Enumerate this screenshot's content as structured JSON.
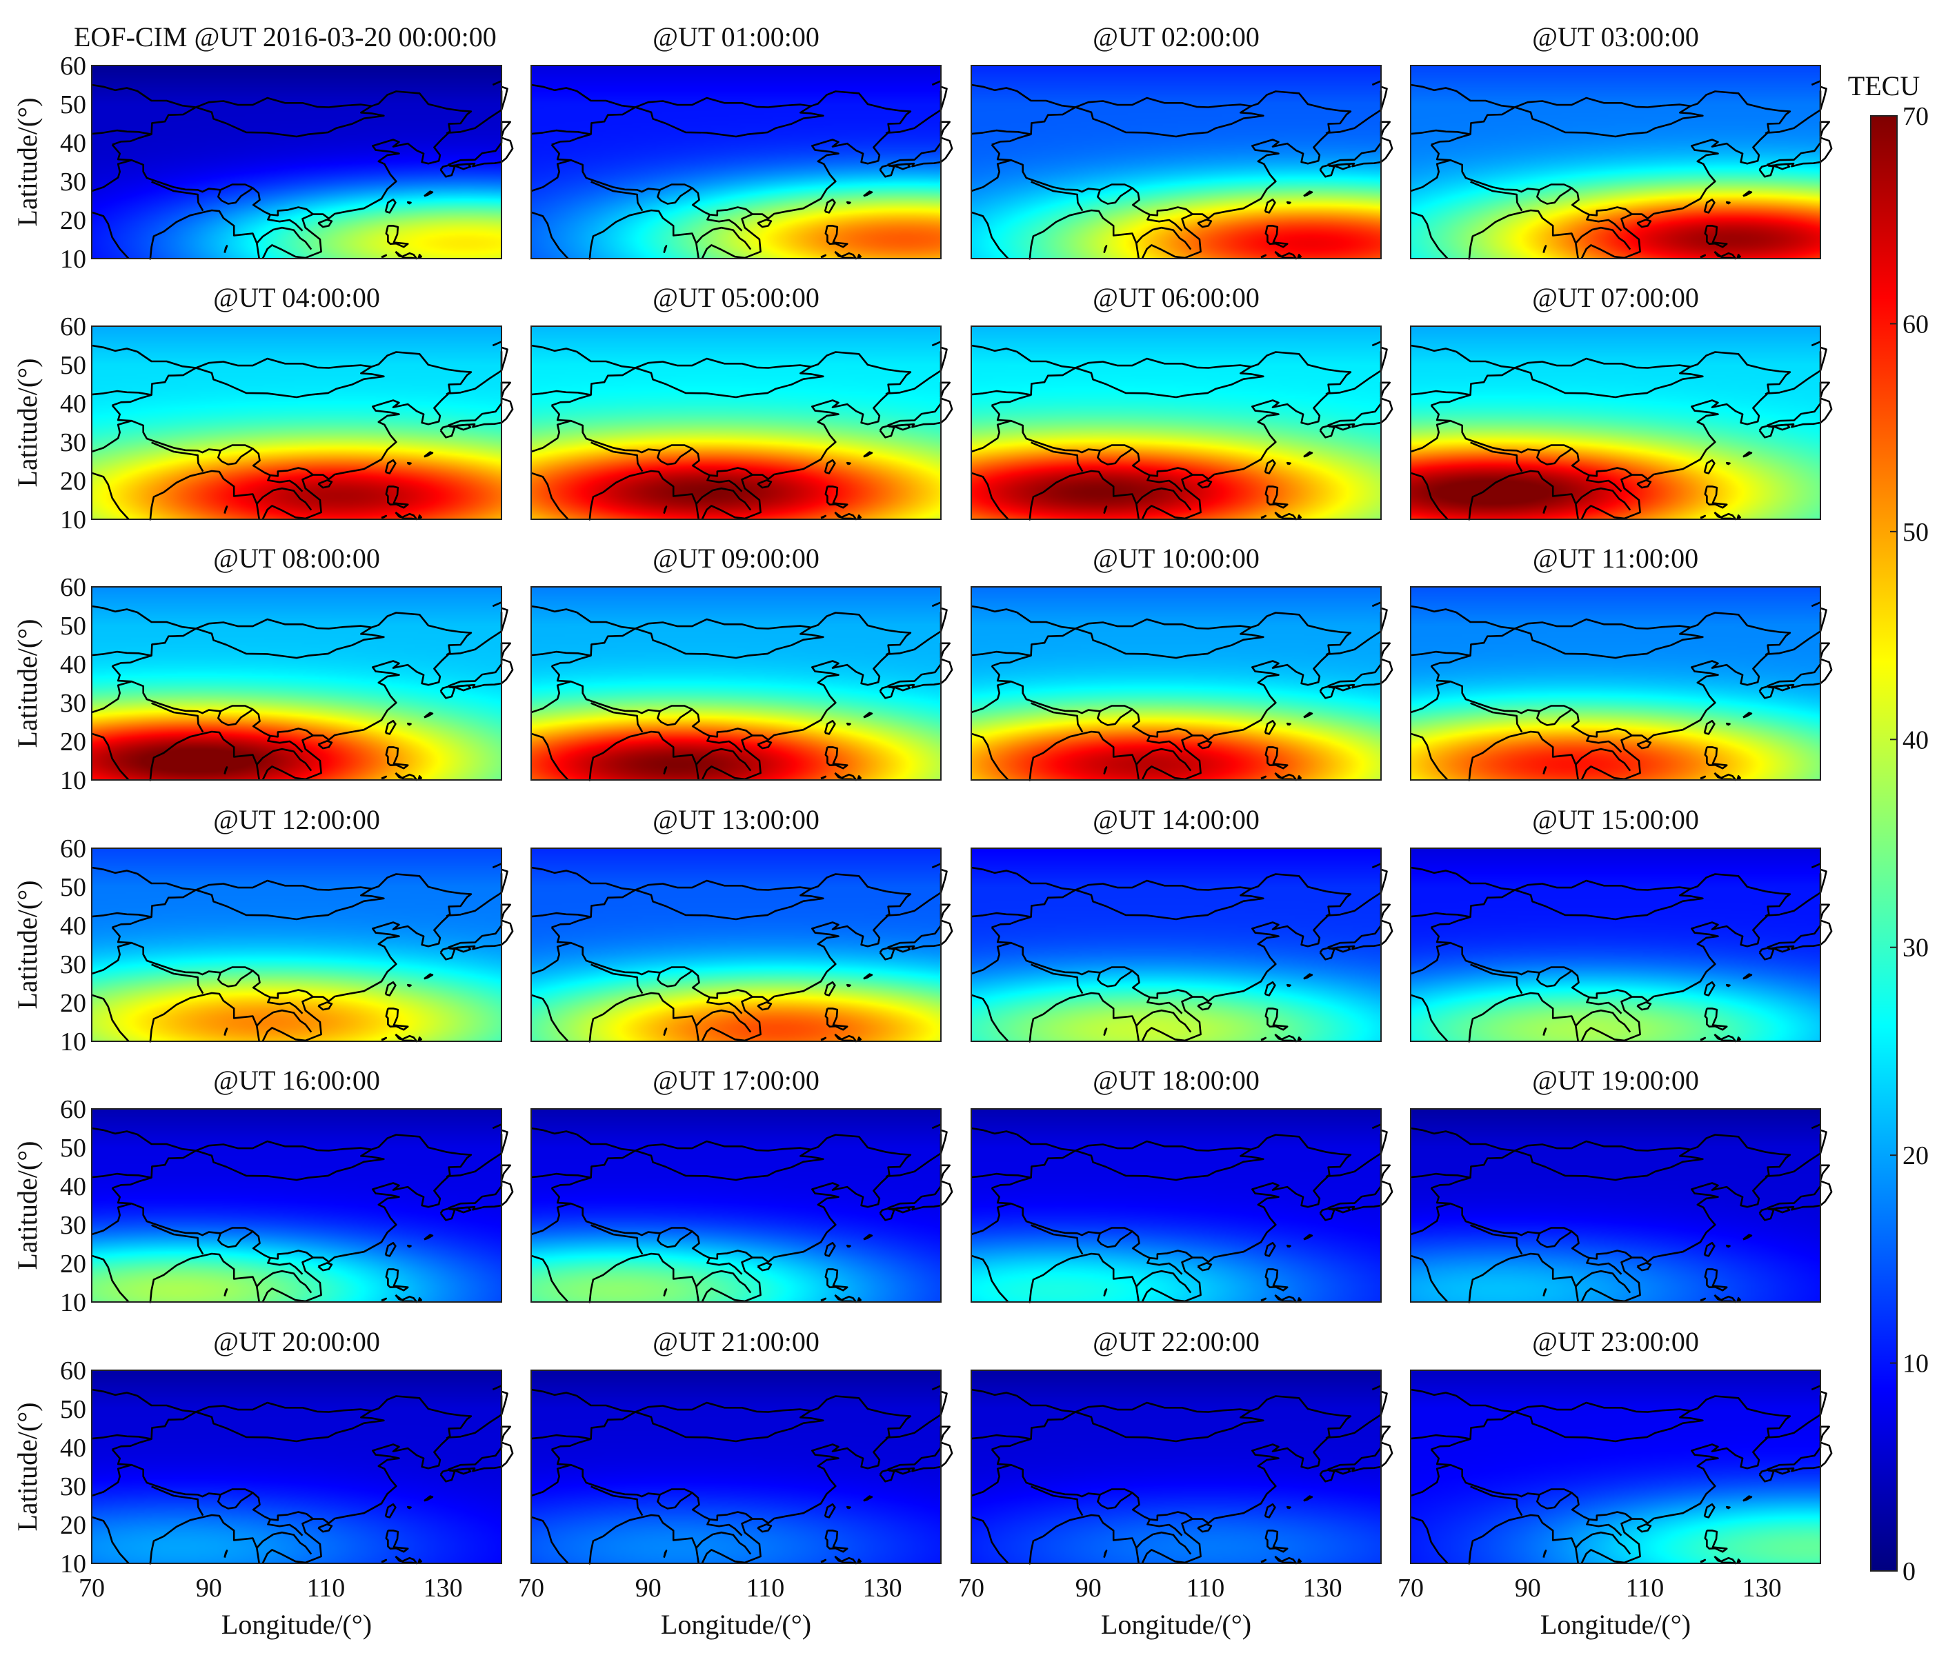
{
  "figure_title": "EOF-CIM @UT 2016-03-20 00:00:00",
  "chart_data": {
    "type": "heatmap",
    "title": "EOF-CIM @UT 2016-03-20 00:00:00",
    "xlabel": "Longitude/(°)",
    "ylabel": "Latitude/(°)",
    "xlim": [
      70,
      140
    ],
    "ylim": [
      10,
      60
    ],
    "x_ticks": [
      "70",
      "90",
      "110",
      "130"
    ],
    "y_ticks": [
      "60",
      "50",
      "40",
      "30",
      "20",
      "10"
    ],
    "colorbar": {
      "label": "TECU",
      "range": [
        0,
        70
      ],
      "ticks": [
        "70",
        "60",
        "50",
        "40",
        "30",
        "20",
        "10",
        "0"
      ],
      "colormap": "jet"
    },
    "panels": [
      {
        "title": "EOF-CIM @UT 2016-03-20 00:00:00",
        "peak_lon": 134,
        "peak_lat": 14,
        "peak_tec": 45,
        "background_tec": 5
      },
      {
        "title": "@UT 01:00:00",
        "peak_lon": 134,
        "peak_lat": 15,
        "peak_tec": 55,
        "background_tec": 10
      },
      {
        "title": "@UT 02:00:00",
        "peak_lon": 128,
        "peak_lat": 14,
        "peak_tec": 62,
        "background_tec": 15
      },
      {
        "title": "@UT 03:00:00",
        "peak_lon": 125,
        "peak_lat": 15,
        "peak_tec": 68,
        "background_tec": 17
      },
      {
        "title": "@UT 04:00:00",
        "peak_lon": 112,
        "peak_lat": 16,
        "peak_tec": 67,
        "background_tec": 24
      },
      {
        "title": "@UT 05:00:00",
        "peak_lon": 100,
        "peak_lat": 17,
        "peak_tec": 70,
        "background_tec": 25
      },
      {
        "title": "@UT 06:00:00",
        "peak_lon": 92,
        "peak_lat": 17,
        "peak_tec": 70,
        "background_tec": 25
      },
      {
        "title": "@UT 07:00:00",
        "peak_lon": 84,
        "peak_lat": 17,
        "peak_tec": 72,
        "background_tec": 24
      },
      {
        "title": "@UT 08:00:00",
        "peak_lon": 88,
        "peak_lat": 15,
        "peak_tec": 72,
        "background_tec": 22
      },
      {
        "title": "@UT 09:00:00",
        "peak_lon": 95,
        "peak_lat": 14,
        "peak_tec": 70,
        "background_tec": 21
      },
      {
        "title": "@UT 10:00:00",
        "peak_lon": 100,
        "peak_lat": 14,
        "peak_tec": 66,
        "background_tec": 20
      },
      {
        "title": "@UT 11:00:00",
        "peak_lon": 98,
        "peak_lat": 14,
        "peak_tec": 60,
        "background_tec": 18
      },
      {
        "title": "@UT 12:00:00",
        "peak_lon": 100,
        "peak_lat": 15,
        "peak_tec": 52,
        "background_tec": 17
      },
      {
        "title": "@UT 13:00:00",
        "peak_lon": 112,
        "peak_lat": 13,
        "peak_tec": 56,
        "background_tec": 15
      },
      {
        "title": "@UT 14:00:00",
        "peak_lon": 100,
        "peak_lat": 13,
        "peak_tec": 40,
        "background_tec": 12
      },
      {
        "title": "@UT 15:00:00",
        "peak_lon": 100,
        "peak_lat": 13,
        "peak_tec": 38,
        "background_tec": 10
      },
      {
        "title": "@UT 16:00:00",
        "peak_lon": 85,
        "peak_lat": 13,
        "peak_tec": 38,
        "background_tec": 7
      },
      {
        "title": "@UT 17:00:00",
        "peak_lon": 85,
        "peak_lat": 13,
        "peak_tec": 36,
        "background_tec": 7
      },
      {
        "title": "@UT 18:00:00",
        "peak_lon": 85,
        "peak_lat": 13,
        "peak_tec": 28,
        "background_tec": 7
      },
      {
        "title": "@UT 19:00:00",
        "peak_lon": 85,
        "peak_lat": 13,
        "peak_tec": 22,
        "background_tec": 6
      },
      {
        "title": "@UT 20:00:00",
        "peak_lon": 85,
        "peak_lat": 14,
        "peak_tec": 20,
        "background_tec": 6
      },
      {
        "title": "@UT 21:00:00",
        "peak_lon": 95,
        "peak_lat": 14,
        "peak_tec": 18,
        "background_tec": 6
      },
      {
        "title": "@UT 22:00:00",
        "peak_lon": 110,
        "peak_lat": 14,
        "peak_tec": 17,
        "background_tec": 6
      },
      {
        "title": "@UT 23:00:00",
        "peak_lon": 138,
        "peak_lat": 14,
        "peak_tec": 33,
        "background_tec": 8
      }
    ]
  }
}
